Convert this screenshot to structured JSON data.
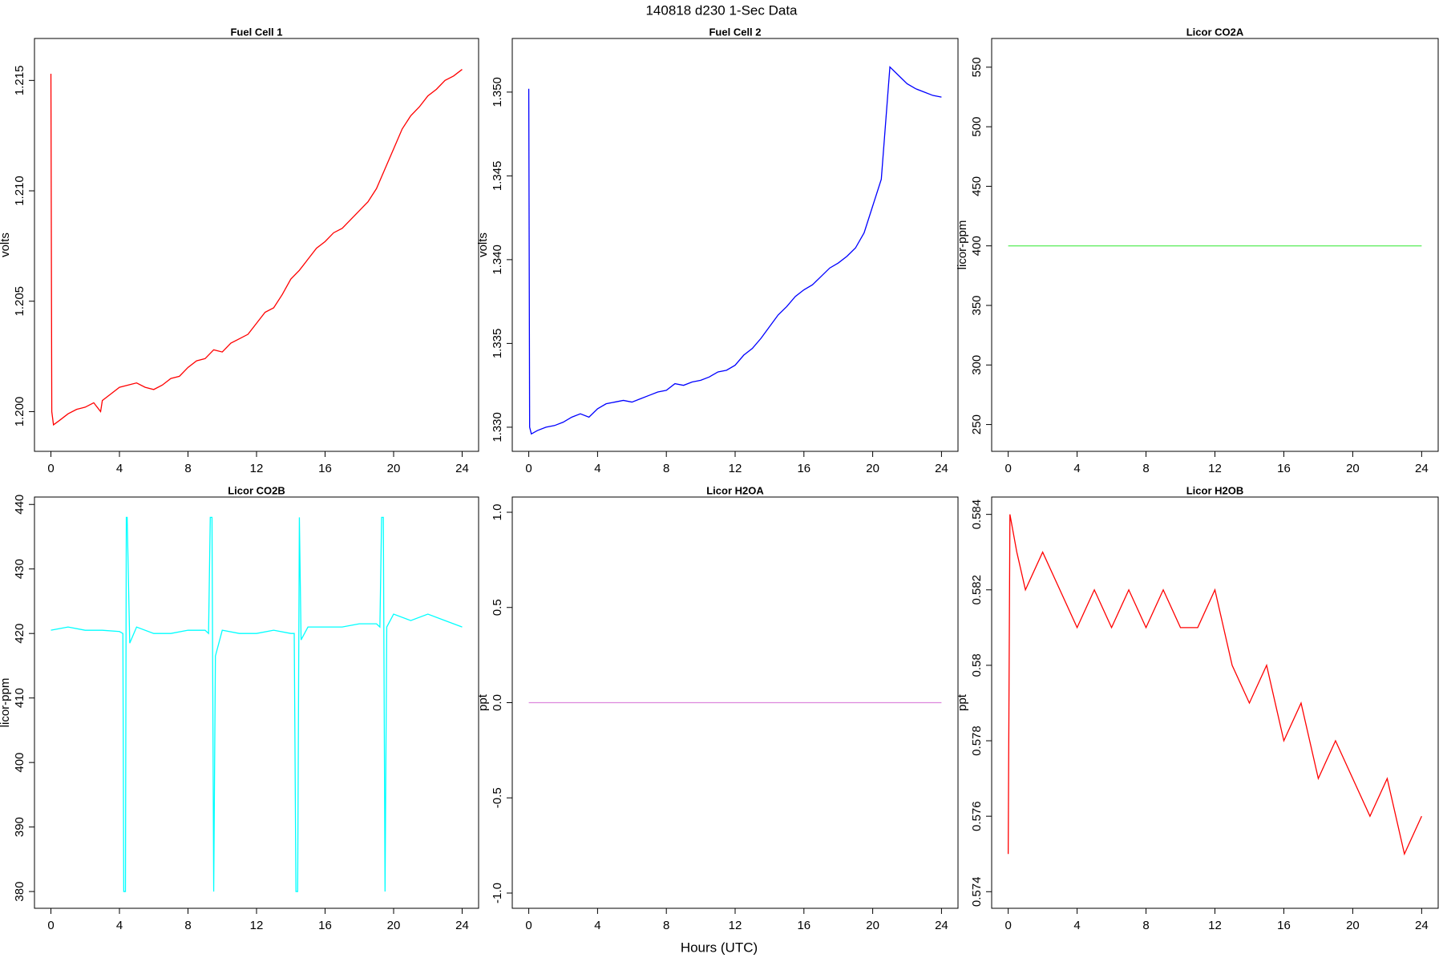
{
  "title": "140818   d230   1-Sec Data",
  "xlabel": "Hours (UTC)",
  "chart_data": [
    {
      "type": "line",
      "title": "Fuel Cell 1",
      "ylabel": "volts",
      "x": [
        0,
        0.05,
        0.15,
        0.5,
        1,
        1.5,
        2,
        2.5,
        2.9,
        3,
        3.5,
        4,
        4.5,
        5,
        5.5,
        6,
        6.5,
        7,
        7.5,
        8,
        8.5,
        9,
        9.5,
        10,
        10.5,
        11,
        11.5,
        12,
        12.5,
        13,
        13.5,
        14,
        14.5,
        15,
        15.5,
        16,
        16.5,
        17,
        17.5,
        18,
        18.5,
        19,
        19.5,
        20,
        20.5,
        21,
        21.5,
        22,
        22.5,
        23,
        23.5,
        24
      ],
      "series": [
        {
          "name": "Fuel Cell 1",
          "color": "#ff0000",
          "values": [
            1.2153,
            1.2,
            1.1994,
            1.1996,
            1.1999,
            1.2001,
            1.2002,
            1.2004,
            1.2,
            1.2005,
            1.2008,
            1.2011,
            1.2012,
            1.2013,
            1.2011,
            1.201,
            1.2012,
            1.2015,
            1.2016,
            1.202,
            1.2023,
            1.2024,
            1.2028,
            1.2027,
            1.2031,
            1.2033,
            1.2035,
            1.204,
            1.2045,
            1.2047,
            1.2053,
            1.206,
            1.2064,
            1.2069,
            1.2074,
            1.2077,
            1.2081,
            1.2083,
            1.2087,
            1.2091,
            1.2095,
            1.2101,
            1.211,
            1.2119,
            1.2128,
            1.2134,
            1.2138,
            1.2143,
            1.2146,
            1.215,
            1.2152,
            1.2155
          ]
        }
      ],
      "xlim": [
        -0.96,
        24.96
      ],
      "xticks": [
        0,
        4,
        8,
        12,
        16,
        20,
        24
      ],
      "ylim": [
        1.1982,
        1.2169
      ],
      "yticks": [
        {
          "value": 1.2,
          "label": "1.200"
        },
        1.205,
        {
          "value": 1.21,
          "label": "1.210"
        },
        1.215
      ]
    },
    {
      "type": "line",
      "title": "Fuel Cell 2",
      "ylabel": "volts",
      "x": [
        0,
        0.05,
        0.15,
        0.5,
        1,
        1.5,
        2,
        2.5,
        3,
        3.5,
        4,
        4.5,
        5,
        5.5,
        6,
        6.5,
        7,
        7.5,
        8,
        8.5,
        9,
        9.5,
        10,
        10.5,
        11,
        11.5,
        12,
        12.5,
        13,
        13.5,
        14,
        14.5,
        15,
        15.5,
        16,
        16.5,
        17,
        17.5,
        18,
        18.5,
        19,
        19.5,
        20,
        20.5,
        21,
        21.5,
        22,
        22.5,
        23,
        23.5,
        24
      ],
      "series": [
        {
          "name": "Fuel Cell 2",
          "color": "#0000ff",
          "values": [
            1.3502,
            1.33,
            1.3296,
            1.3298,
            1.33,
            1.3301,
            1.3303,
            1.3306,
            1.3308,
            1.3306,
            1.3311,
            1.3314,
            1.3315,
            1.3316,
            1.3315,
            1.3317,
            1.3319,
            1.3321,
            1.3322,
            1.3326,
            1.3325,
            1.3327,
            1.3328,
            1.333,
            1.3333,
            1.3334,
            1.3337,
            1.3343,
            1.3347,
            1.3353,
            1.336,
            1.3367,
            1.3372,
            1.3378,
            1.3382,
            1.3385,
            1.339,
            1.3395,
            1.3398,
            1.3402,
            1.3407,
            1.3416,
            1.3432,
            1.3448,
            1.3515,
            1.351,
            1.3505,
            1.3502,
            1.35,
            1.3498,
            1.3497
          ]
        }
      ],
      "xlim": [
        -0.96,
        24.96
      ],
      "xticks": [
        0,
        4,
        8,
        12,
        16,
        20,
        24
      ],
      "ylim": [
        1.32856,
        1.3532
      ],
      "yticks": [
        {
          "value": 1.33,
          "label": "1.330"
        },
        1.335,
        {
          "value": 1.34,
          "label": "1.340"
        },
        1.345,
        {
          "value": 1.35,
          "label": "1.350"
        }
      ]
    },
    {
      "type": "line",
      "title": "Licor CO2A",
      "ylabel": "licor-ppm",
      "x": [
        0,
        24
      ],
      "series": [
        {
          "name": "Licor CO2A",
          "color": "#66ee66",
          "values": [
            400,
            400
          ]
        }
      ],
      "xlim": [
        -0.96,
        24.96
      ],
      "xticks": [
        0,
        4,
        8,
        12,
        16,
        20,
        24
      ],
      "ylim": [
        227.5,
        574.1
      ],
      "yticks": [
        250,
        300,
        350,
        400,
        450,
        500,
        550
      ]
    },
    {
      "type": "line",
      "title": "Licor CO2B",
      "ylabel": "licor-ppm",
      "x": [
        0,
        1,
        2,
        3,
        4,
        4.2,
        4.25,
        4.35,
        4.4,
        4.45,
        4.6,
        5,
        6,
        7,
        8,
        9,
        9.2,
        9.3,
        9.4,
        9.5,
        9.6,
        10,
        11,
        12,
        13,
        14,
        14.2,
        14.3,
        14.4,
        14.5,
        14.6,
        15,
        16,
        17,
        18,
        19,
        19.2,
        19.3,
        19.4,
        19.5,
        19.6,
        20,
        21,
        22,
        23,
        24
      ],
      "series": [
        {
          "name": "Licor CO2B",
          "color": "#00ffff",
          "values": [
            420.5,
            421,
            420.5,
            420.5,
            420.3,
            420,
            380,
            380,
            438,
            438,
            418.5,
            421,
            420,
            420,
            420.5,
            420.5,
            420,
            438,
            438,
            380,
            416.5,
            420.5,
            420,
            420,
            420.5,
            420,
            420,
            380,
            380,
            438,
            419,
            421,
            421,
            421,
            421.5,
            421.5,
            421,
            438,
            438,
            380,
            421,
            423,
            422,
            423,
            422,
            421
          ]
        }
      ],
      "xlim": [
        -0.96,
        24.96
      ],
      "xticks": [
        0,
        4,
        8,
        12,
        16,
        20,
        24
      ],
      "ylim": [
        377.4,
        441.15
      ],
      "yticks": [
        380,
        390,
        400,
        410,
        420,
        430,
        440
      ]
    },
    {
      "type": "line",
      "title": "Licor H2OA",
      "ylabel": "ppt",
      "x": [
        0,
        24
      ],
      "series": [
        {
          "name": "Licor H2OA",
          "color": "#dd88dd",
          "values": [
            0,
            0
          ]
        }
      ],
      "xlim": [
        -0.96,
        24.96
      ],
      "xticks": [
        0,
        4,
        8,
        12,
        16,
        20,
        24
      ],
      "ylim": [
        -1.08,
        1.08
      ],
      "yticks": [
        {
          "value": -1,
          "label": "-1.0"
        },
        -0.5,
        {
          "value": 0,
          "label": "0.0"
        },
        0.5,
        {
          "value": 1,
          "label": "1.0"
        }
      ]
    },
    {
      "type": "line",
      "title": "Licor H2OB",
      "ylabel": "ppt",
      "x": [
        0,
        0.1,
        0.5,
        1,
        2,
        3,
        4,
        5,
        6,
        7,
        8,
        9,
        10,
        11,
        12,
        13,
        14,
        15,
        16,
        17,
        18,
        19,
        20,
        21,
        22,
        23,
        24
      ],
      "series": [
        {
          "name": "Licor H2OB",
          "color": "#ff0000",
          "values": [
            0.575,
            0.584,
            0.583,
            0.582,
            0.583,
            0.582,
            0.581,
            0.582,
            0.581,
            0.582,
            0.581,
            0.582,
            0.581,
            0.581,
            0.582,
            0.58,
            0.579,
            0.58,
            0.578,
            0.579,
            0.577,
            0.578,
            0.577,
            0.576,
            0.577,
            0.575,
            0.576
          ]
        }
      ],
      "xlim": [
        -0.96,
        24.96
      ],
      "xticks": [
        0,
        4,
        8,
        12,
        16,
        20,
        24
      ],
      "ylim": [
        0.57356,
        0.58446
      ],
      "yticks": [
        0.574,
        0.576,
        0.578,
        0.58,
        0.582,
        0.584
      ]
    }
  ]
}
